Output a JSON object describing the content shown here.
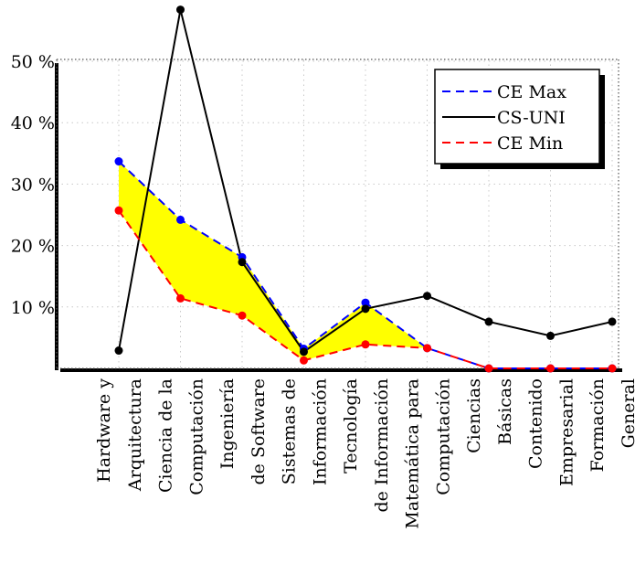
{
  "chart_data": {
    "type": "line",
    "categories": [
      [
        "Hardware y",
        "Arquitectura"
      ],
      [
        "Ciencia de la",
        "Computación"
      ],
      [
        "Ingeniería",
        "de Software"
      ],
      [
        "Sistemas de",
        "Información"
      ],
      [
        "Tecnología",
        "de Información"
      ],
      [
        "Matemática para",
        "Computación"
      ],
      [
        "Ciencias",
        "Básicas"
      ],
      [
        "Contenido",
        "Empresarial"
      ],
      [
        "Formación",
        "General"
      ]
    ],
    "y_ticks": [
      {
        "value": 10,
        "label": "10 %"
      },
      {
        "value": 20,
        "label": "20 %"
      },
      {
        "value": 30,
        "label": "30 %"
      },
      {
        "value": 40,
        "label": "40 %"
      },
      {
        "value": 50,
        "label": "50 %"
      }
    ],
    "ylim": [
      0,
      50
    ],
    "grid": true,
    "legend_position": "top-right",
    "fill_between": {
      "upper": "CE Max",
      "lower": "CE Min",
      "color": "#ffff00"
    },
    "series": [
      {
        "name": "CE Max",
        "color": "#0000ff",
        "style": "dashed",
        "marker_color": "#0000ff",
        "values": [
          33.7,
          24.2,
          18.1,
          3.2,
          10.7,
          3.3,
          0,
          0,
          0
        ]
      },
      {
        "name": "CS-UNI",
        "color": "#000000",
        "style": "solid",
        "marker_color": "#000000",
        "values": [
          2.9,
          58.4,
          17.3,
          2.7,
          9.7,
          11.8,
          7.6,
          5.3,
          7.6
        ]
      },
      {
        "name": "CE Min",
        "color": "#ff0000",
        "style": "dashed",
        "marker_color": "#ff0000",
        "values": [
          25.7,
          11.4,
          8.6,
          1.3,
          3.9,
          3.3,
          0,
          0,
          0
        ]
      }
    ]
  }
}
